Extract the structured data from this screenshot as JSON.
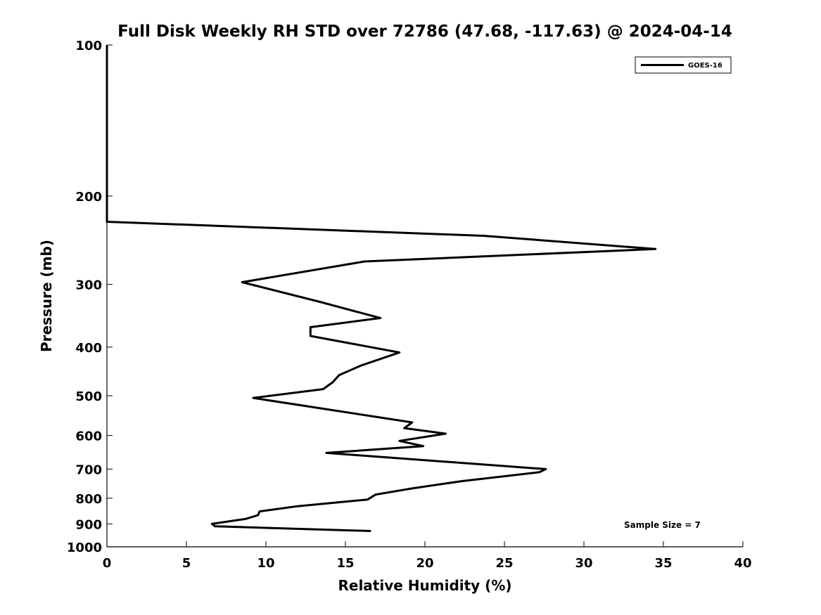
{
  "chart_data": {
    "type": "line",
    "title": "Full Disk Weekly RH STD over 72786 (47.68, -117.63) @ 2024-04-14",
    "xlabel": "Relative Humidity (%)",
    "ylabel": "Pressure (mb)",
    "xlim": [
      0,
      40
    ],
    "ylim": [
      100,
      1000
    ],
    "yscale": "log",
    "y_reversed": true,
    "x_ticks": [
      0,
      5,
      10,
      15,
      20,
      25,
      30,
      35,
      40
    ],
    "x_tick_labels": [
      "0",
      "5",
      "10",
      "15",
      "20",
      "25",
      "30",
      "35",
      "40"
    ],
    "y_ticks": [
      100,
      200,
      300,
      400,
      500,
      600,
      700,
      800,
      900,
      1000
    ],
    "y_tick_labels": [
      "100",
      "200",
      "300",
      "400",
      "500",
      "600",
      "700",
      "800",
      "900",
      "1000"
    ],
    "grid": false,
    "legend_position": "top-right",
    "annotation": "Sample Size = 7",
    "series": [
      {
        "name": "GOES-16",
        "color": "#000000",
        "x": [
          0,
          0,
          0,
          0,
          23.7,
          34.5,
          16.2,
          8.5,
          13.4,
          17.2,
          12.8,
          12.8,
          18.4,
          16.0,
          14.6,
          14.2,
          13.6,
          9.2,
          19.2,
          18.7,
          21.3,
          18.4,
          19.9,
          13.8,
          27.6,
          27.2,
          22.3,
          19.2,
          16.9,
          16.4,
          12.0,
          9.6,
          9.5,
          8.7,
          6.6,
          6.8,
          16.6
        ],
        "y": [
          100,
          150,
          200,
          225,
          240,
          255,
          270,
          297,
          325,
          350,
          365,
          380,
          410,
          435,
          455,
          470,
          485,
          505,
          565,
          580,
          595,
          615,
          630,
          650,
          700,
          710,
          740,
          765,
          787,
          805,
          830,
          850,
          865,
          880,
          900,
          910,
          930
        ]
      }
    ]
  }
}
